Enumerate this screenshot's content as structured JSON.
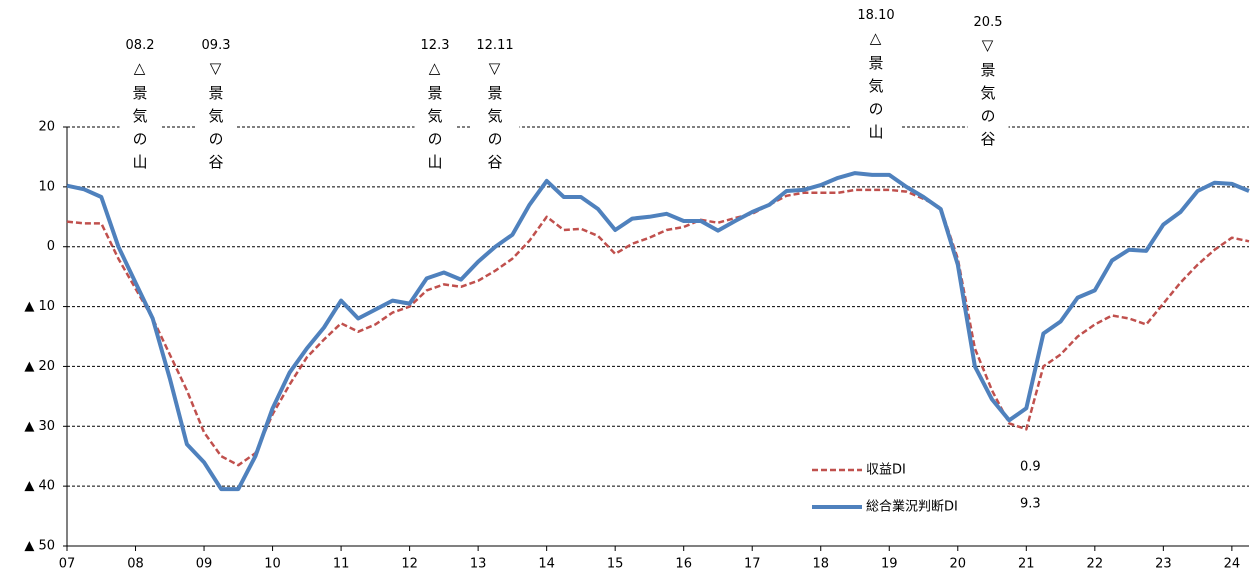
{
  "chart_data": {
    "type": "line",
    "x": [
      2007,
      2007.25,
      2007.5,
      2007.75,
      2008,
      2008.25,
      2008.5,
      2008.75,
      2009,
      2009.25,
      2009.5,
      2009.75,
      2010,
      2010.25,
      2010.5,
      2010.75,
      2011,
      2011.25,
      2011.5,
      2011.75,
      2012,
      2012.25,
      2012.5,
      2012.75,
      2013,
      2013.25,
      2013.5,
      2013.75,
      2014,
      2014.25,
      2014.5,
      2014.75,
      2015,
      2015.25,
      2015.5,
      2015.75,
      2016,
      2016.25,
      2016.5,
      2016.75,
      2017,
      2017.25,
      2017.5,
      2017.75,
      2018,
      2018.25,
      2018.5,
      2018.75,
      2019,
      2019.25,
      2019.5,
      2019.75,
      2020,
      2020.25,
      2020.5,
      2020.75,
      2021,
      2021.25,
      2021.5,
      2021.75,
      2022,
      2022.25,
      2022.5,
      2022.75,
      2023,
      2023.25,
      2023.5,
      2023.75,
      2024,
      2024.25
    ],
    "series": [
      {
        "name": "収益DI",
        "color": "#c0504d",
        "dash": true,
        "values": [
          4.2,
          3.9,
          3.9,
          -2,
          -7,
          -12,
          -18,
          -24,
          -31,
          -35,
          -36.5,
          -34.5,
          -28,
          -23,
          -18.5,
          -15.5,
          -12.8,
          -14.2,
          -13,
          -11,
          -10,
          -7.3,
          -6.3,
          -6.7,
          -5.7,
          -4,
          -2,
          1,
          5,
          2.8,
          3,
          1.8,
          -1.2,
          0.5,
          1.5,
          2.8,
          3.3,
          4.5,
          4,
          4.8,
          5.5,
          7,
          8.5,
          9,
          9,
          9,
          9.5,
          9.5,
          9.5,
          9.2,
          8,
          6.5,
          -2,
          -17,
          -24,
          -29.5,
          -30.5,
          -20,
          -18,
          -15,
          -13,
          -11.5,
          -12,
          -13,
          -9.5,
          -6,
          -3,
          -0.5,
          1.5,
          0.9
        ]
      },
      {
        "name": "総合業況判断DI",
        "color": "#4f81bd",
        "dash": false,
        "values": [
          10.2,
          9.6,
          8.3,
          0,
          -6,
          -12,
          -22,
          -33,
          -36,
          -40.5,
          -40.5,
          -35,
          -27,
          -21,
          -17,
          -13.5,
          -9,
          -12,
          -10.5,
          -9,
          -9.5,
          -5.3,
          -4.3,
          -5.5,
          -2.5,
          0,
          2,
          7,
          11,
          8.3,
          8.3,
          6.3,
          2.8,
          4.7,
          5,
          5.5,
          4.3,
          4.3,
          2.7,
          4.3,
          5.8,
          7,
          9.3,
          9.5,
          10.3,
          11.5,
          12.3,
          12,
          12,
          10,
          8.3,
          6.3,
          -3,
          -20,
          -25.5,
          -29,
          -27,
          -14.5,
          -12.5,
          -8.5,
          -7.3,
          -2.3,
          -0.5,
          -0.7,
          3.7,
          5.8,
          9.3,
          10.7,
          10.5,
          9.3
        ]
      }
    ],
    "xlim": [
      2007,
      2024.25
    ],
    "xticks": [
      {
        "value": 2007,
        "label": "07"
      },
      {
        "value": 2008,
        "label": "08"
      },
      {
        "value": 2009,
        "label": "09"
      },
      {
        "value": 2010,
        "label": "10"
      },
      {
        "value": 2011,
        "label": "11"
      },
      {
        "value": 2012,
        "label": "12"
      },
      {
        "value": 2013,
        "label": "13"
      },
      {
        "value": 2014,
        "label": "14"
      },
      {
        "value": 2015,
        "label": "15"
      },
      {
        "value": 2016,
        "label": "16"
      },
      {
        "value": 2017,
        "label": "17"
      },
      {
        "value": 2018,
        "label": "18"
      },
      {
        "value": 2019,
        "label": "19"
      },
      {
        "value": 2020,
        "label": "20"
      },
      {
        "value": 2021,
        "label": "21"
      },
      {
        "value": 2022,
        "label": "22"
      },
      {
        "value": 2023,
        "label": "23"
      },
      {
        "value": 2024,
        "label": "24"
      }
    ],
    "ylim": [
      -50,
      20
    ],
    "yticks": [
      20,
      10,
      0,
      {
        "value": -10,
        "label": "▲ 10"
      },
      {
        "value": -20,
        "label": "▲ 20"
      },
      {
        "value": -30,
        "label": "▲ 30"
      },
      {
        "value": -40,
        "label": "▲ 40"
      },
      {
        "value": -50,
        "label": "▲ 50"
      }
    ],
    "grid": true,
    "annotations": [
      {
        "date": "08.2",
        "text": "△景気の山"
      },
      {
        "date": "09.3",
        "text": "▽景気の谷"
      },
      {
        "date": "12.3",
        "text": "△景気の山"
      },
      {
        "date": "12.11",
        "text": "▽景気の谷"
      },
      {
        "date": "18.10",
        "text": "△景気の山"
      },
      {
        "date": "20.5",
        "text": "▽景気の谷"
      }
    ]
  }
}
